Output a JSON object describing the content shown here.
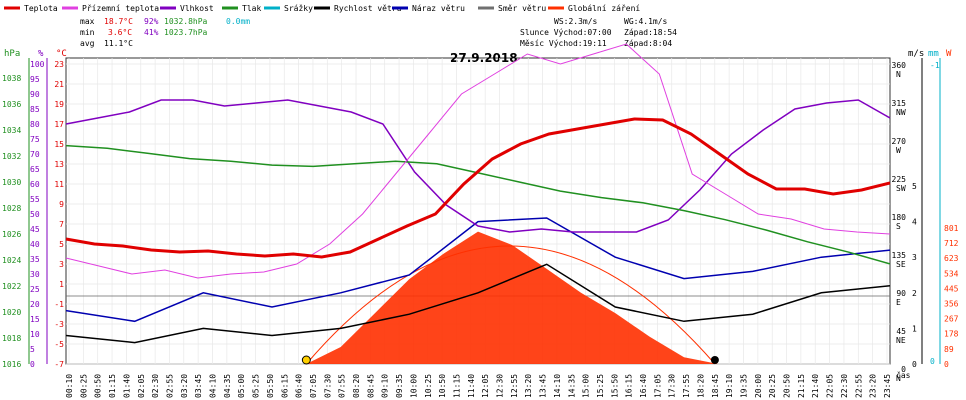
{
  "chart_data": {
    "type": "line",
    "title": "27.9.2018",
    "legend": [
      {
        "name": "Teplota",
        "color": "#e00000"
      },
      {
        "name": "Přízemní teplota",
        "color": "#e040e0"
      },
      {
        "name": "Vlhkost",
        "color": "#8000c0"
      },
      {
        "name": "Tlak",
        "color": "#209020"
      },
      {
        "name": "Srážky",
        "color": "#00b0c8"
      },
      {
        "name": "Rychlost větru",
        "color": "#000000"
      },
      {
        "name": "Náraz větru",
        "color": "#0000b0"
      },
      {
        "name": "Směr větru",
        "color": "#707070"
      },
      {
        "name": "Globální záření",
        "color": "#ff3000"
      }
    ],
    "stats": {
      "max_label": "max",
      "min_label": "min",
      "avg_label": "avg",
      "temp_max": "18.7°C",
      "temp_min": "3.6°C",
      "temp_avg": "11.1°C",
      "hum_max": "92%",
      "hum_min": "41%",
      "press_max": "1032.8hPa",
      "press_min": "1023.7hPa",
      "rain": "0.0mm"
    },
    "info": {
      "ws": "WS:2.3m/s",
      "wg": "WG:4.1m/s",
      "sun": "Slunce Východ:07:00",
      "sun_set": "Západ:18:54",
      "moon": "Měsíc Východ:19:11",
      "moon_set": "Západ:8:04"
    },
    "axes": {
      "hpa_unit": "hPa",
      "pct_unit": "%",
      "c_unit": "°C",
      "ms_unit": "m/s",
      "mm_unit": "mm",
      "w_unit": "W",
      "x_unit": "čas",
      "hpa_ticks": [
        "1038",
        "1036",
        "1034",
        "1032",
        "1030",
        "1028",
        "1026",
        "1024",
        "1022",
        "1020",
        "1018",
        "1016"
      ],
      "pct_ticks": [
        "100",
        "95",
        "90",
        "85",
        "80",
        "75",
        "70",
        "65",
        "60",
        "55",
        "50",
        "45",
        "40",
        "35",
        "30",
        "25",
        "20",
        "15",
        "10",
        "5",
        "0"
      ],
      "c_ticks": [
        "23",
        "21",
        "19",
        "17",
        "15",
        "13",
        "11",
        "9",
        "7",
        "5",
        "3",
        "1",
        "-1",
        "-3",
        "-5",
        "-7"
      ],
      "dir_ticks": [
        {
          "d": "360",
          "l": "N"
        },
        {
          "d": "315",
          "l": "NW"
        },
        {
          "d": "270",
          "l": "W"
        },
        {
          "d": "225",
          "l": "SW"
        },
        {
          "d": "180",
          "l": "S"
        },
        {
          "d": "135",
          "l": "SE"
        },
        {
          "d": "90",
          "l": "E"
        },
        {
          "d": "45",
          "l": "NE"
        },
        {
          "d": "0",
          "l": "N"
        }
      ],
      "ms_ticks": [
        "5",
        "4",
        "3",
        "2",
        "1",
        "0"
      ],
      "mm_ticks": [
        "-1",
        "0"
      ],
      "w_ticks": [
        "801",
        "712",
        "623",
        "534",
        "445",
        "356",
        "267",
        "178",
        "89",
        "0"
      ],
      "x_ticks": [
        "00:10",
        "00:25",
        "00:50",
        "01:15",
        "01:40",
        "02:05",
        "02:30",
        "02:55",
        "03:20",
        "03:45",
        "04:10",
        "04:35",
        "05:00",
        "05:25",
        "05:50",
        "06:15",
        "06:40",
        "07:05",
        "07:30",
        "07:55",
        "08:20",
        "08:45",
        "09:10",
        "09:35",
        "10:00",
        "10:25",
        "10:50",
        "11:15",
        "11:40",
        "12:05",
        "12:30",
        "12:55",
        "13:20",
        "13:45",
        "14:10",
        "14:35",
        "15:00",
        "15:25",
        "15:50",
        "16:15",
        "16:40",
        "17:05",
        "17:30",
        "17:55",
        "18:20",
        "18:45",
        "19:10",
        "19:35",
        "20:00",
        "20:25",
        "20:50",
        "21:15",
        "21:40",
        "22:05",
        "22:30",
        "22:55",
        "23:20",
        "23:45"
      ]
    },
    "series": [
      {
        "name": "Teplota",
        "unit": "°C",
        "points": [
          [
            0,
            5.5
          ],
          [
            1,
            5
          ],
          [
            2,
            4.8
          ],
          [
            3,
            4.4
          ],
          [
            4,
            4.2
          ],
          [
            5,
            4.3
          ],
          [
            6,
            4
          ],
          [
            7,
            3.8
          ],
          [
            8,
            4
          ],
          [
            9,
            3.7
          ],
          [
            10,
            4.2
          ],
          [
            11,
            5.5
          ],
          [
            12,
            6.8
          ],
          [
            13,
            8
          ],
          [
            14,
            11
          ],
          [
            15,
            13.5
          ],
          [
            16,
            15
          ],
          [
            17,
            16
          ],
          [
            18,
            16.5
          ],
          [
            19,
            17
          ],
          [
            20,
            17.5
          ],
          [
            21,
            17.4
          ],
          [
            22,
            16
          ],
          [
            23,
            14
          ],
          [
            24,
            12
          ],
          [
            25,
            10.5
          ],
          [
            26,
            10.5
          ],
          [
            27,
            10
          ],
          [
            28,
            10.4
          ],
          [
            29,
            11.1
          ]
        ]
      },
      {
        "name": "Přízemní teplota",
        "unit": "°C",
        "points": [
          [
            0,
            3.6
          ],
          [
            1,
            2.8
          ],
          [
            2,
            2
          ],
          [
            3,
            2.4
          ],
          [
            4,
            1.6
          ],
          [
            5,
            2
          ],
          [
            6,
            2.2
          ],
          [
            7,
            3
          ],
          [
            8,
            5
          ],
          [
            9,
            8
          ],
          [
            10,
            12
          ],
          [
            11,
            16
          ],
          [
            12,
            20
          ],
          [
            13,
            22
          ],
          [
            14,
            24
          ],
          [
            15,
            23
          ],
          [
            16,
            24
          ],
          [
            17,
            25
          ],
          [
            18,
            22
          ],
          [
            19,
            12
          ],
          [
            20,
            10
          ],
          [
            21,
            8
          ],
          [
            22,
            7.5
          ],
          [
            23,
            6.5
          ],
          [
            24,
            6.2
          ],
          [
            25,
            6
          ]
        ]
      },
      {
        "name": "Vlhkost",
        "unit": "%",
        "points": [
          [
            0,
            80
          ],
          [
            1,
            82
          ],
          [
            2,
            84
          ],
          [
            3,
            88
          ],
          [
            4,
            88
          ],
          [
            5,
            86
          ],
          [
            6,
            87
          ],
          [
            7,
            88
          ],
          [
            8,
            86
          ],
          [
            9,
            84
          ],
          [
            10,
            80
          ],
          [
            11,
            64
          ],
          [
            12,
            53
          ],
          [
            13,
            46
          ],
          [
            14,
            44
          ],
          [
            15,
            45
          ],
          [
            16,
            44
          ],
          [
            17,
            44
          ],
          [
            18,
            44
          ],
          [
            19,
            48
          ],
          [
            20,
            58
          ],
          [
            21,
            70
          ],
          [
            22,
            78
          ],
          [
            23,
            85
          ],
          [
            24,
            87
          ],
          [
            25,
            88
          ],
          [
            26,
            82
          ]
        ]
      },
      {
        "name": "Tlak",
        "unit": "hPa",
        "points": [
          [
            0,
            1032.8
          ],
          [
            1,
            1032.6
          ],
          [
            2,
            1032.2
          ],
          [
            3,
            1031.8
          ],
          [
            4,
            1031.6
          ],
          [
            5,
            1031.3
          ],
          [
            6,
            1031.2
          ],
          [
            7,
            1031.4
          ],
          [
            8,
            1031.6
          ],
          [
            9,
            1031.4
          ],
          [
            10,
            1030.7
          ],
          [
            11,
            1030
          ],
          [
            12,
            1029.3
          ],
          [
            13,
            1028.8
          ],
          [
            14,
            1028.4
          ],
          [
            15,
            1027.8
          ],
          [
            16,
            1027.1
          ],
          [
            17,
            1026.3
          ],
          [
            18,
            1025.4
          ],
          [
            19,
            1024.6
          ],
          [
            20,
            1023.7
          ]
        ]
      },
      {
        "name": "Globální záření",
        "unit": "W",
        "points": [
          [
            7,
            0
          ],
          [
            8,
            100
          ],
          [
            9,
            300
          ],
          [
            10,
            500
          ],
          [
            11,
            650
          ],
          [
            12,
            780
          ],
          [
            13,
            700
          ],
          [
            14,
            560
          ],
          [
            15,
            420
          ],
          [
            16,
            300
          ],
          [
            17,
            160
          ],
          [
            18,
            40
          ],
          [
            19,
            0
          ]
        ]
      },
      {
        "name": "Rychlost větru",
        "unit": "m/s",
        "points": [
          [
            0,
            0.8
          ],
          [
            2,
            0.6
          ],
          [
            4,
            1
          ],
          [
            6,
            0.8
          ],
          [
            8,
            1
          ],
          [
            10,
            1.4
          ],
          [
            12,
            2
          ],
          [
            14,
            2.8
          ],
          [
            16,
            1.6
          ],
          [
            18,
            1.2
          ],
          [
            20,
            1.4
          ],
          [
            22,
            2
          ],
          [
            24,
            2.2
          ]
        ]
      },
      {
        "name": "Náraz větru",
        "unit": "m/s",
        "points": [
          [
            0,
            1.5
          ],
          [
            2,
            1.2
          ],
          [
            4,
            2
          ],
          [
            6,
            1.6
          ],
          [
            8,
            2
          ],
          [
            10,
            2.5
          ],
          [
            12,
            4
          ],
          [
            14,
            4.1
          ],
          [
            16,
            3
          ],
          [
            18,
            2.4
          ],
          [
            20,
            2.6
          ],
          [
            22,
            3
          ],
          [
            24,
            3.2
          ]
        ]
      }
    ]
  }
}
